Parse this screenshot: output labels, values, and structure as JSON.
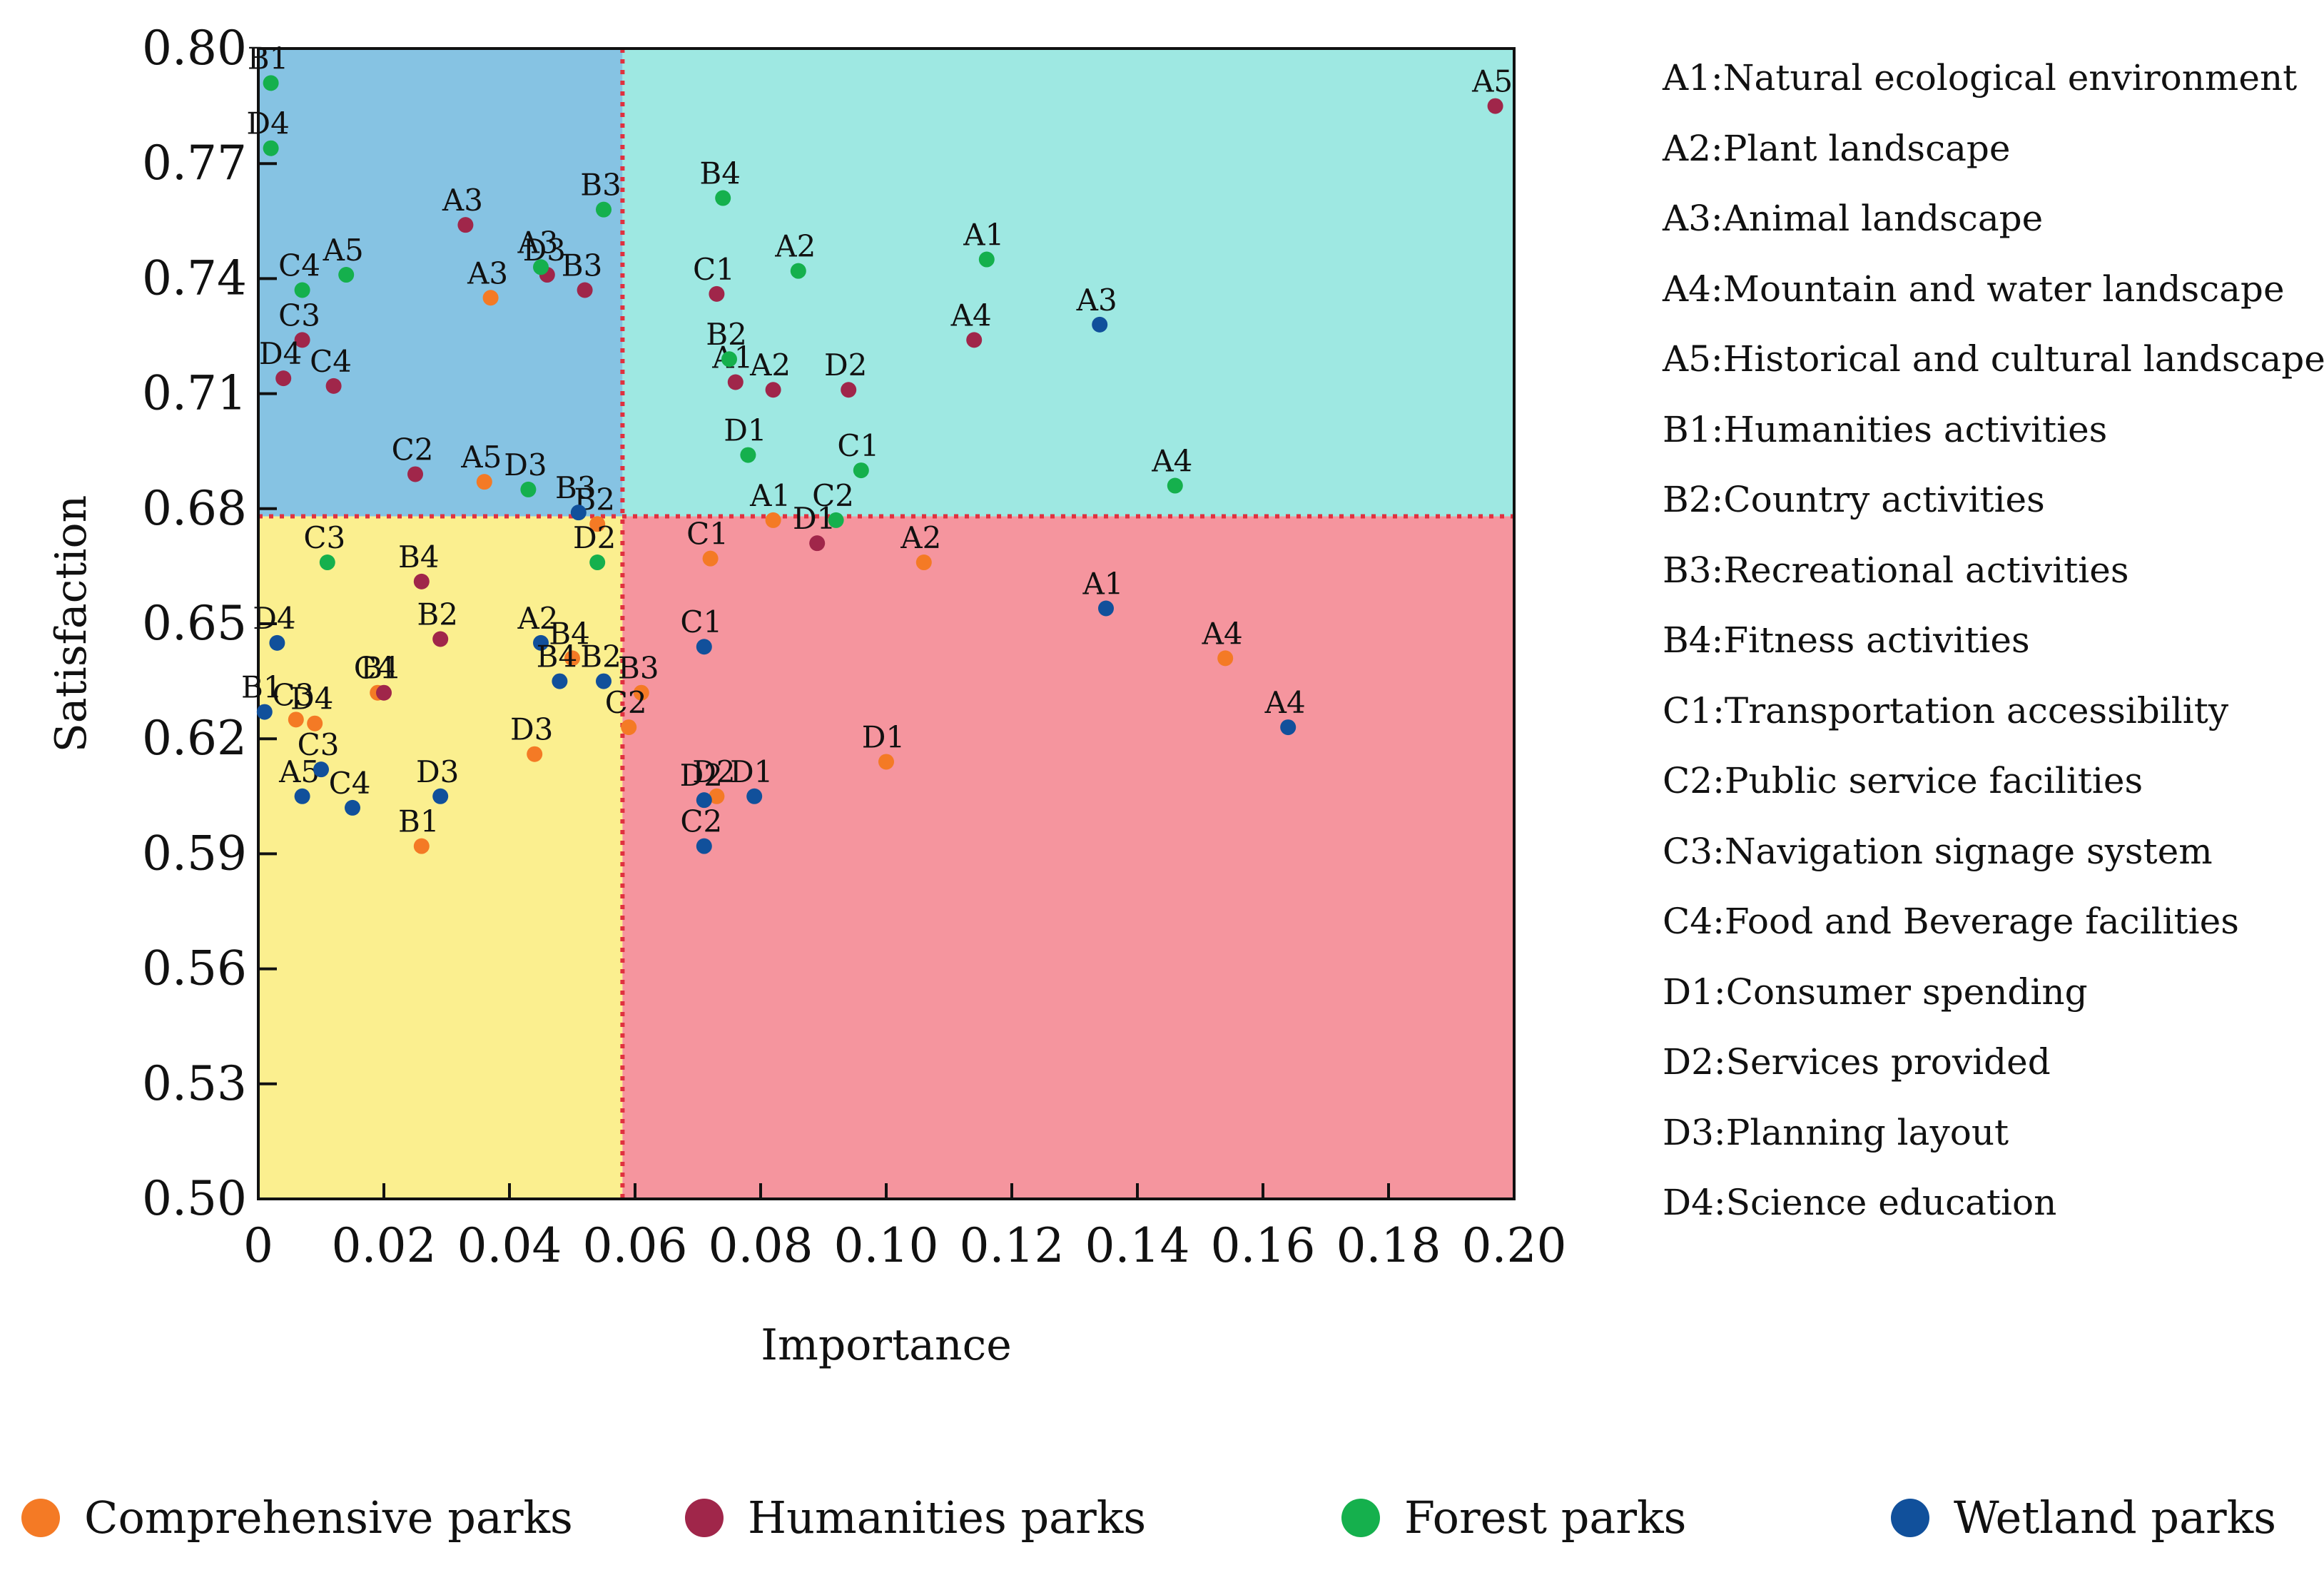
{
  "chart_data": {
    "type": "scatter",
    "xlabel": "Importance",
    "ylabel": "Satisfaction",
    "xlim": [
      0,
      0.2
    ],
    "ylim": [
      0.5,
      0.8
    ],
    "xticks": [
      "0",
      "0.02",
      "0.04",
      "0.06",
      "0.08",
      "0.10",
      "0.12",
      "0.14",
      "0.16",
      "0.18",
      "0.20"
    ],
    "yticks": [
      "0.80",
      "0.77",
      "0.74",
      "0.71",
      "0.68",
      "0.65",
      "0.62",
      "0.59",
      "0.56",
      "0.53",
      "0.50"
    ],
    "threshold_x": 0.058,
    "threshold_y": 0.678,
    "quadrant_colors": {
      "top_left": "#86c3e3",
      "top_right": "#9ee8e2",
      "bottom_left": "#fbef8f",
      "bottom_right": "#f5959e",
      "threshold_line": "#e0313f"
    },
    "series": [
      {
        "name": "Comprehensive parks",
        "color": "#f47a25",
        "points": [
          {
            "label": "A1",
            "x": 0.082,
            "y": 0.677
          },
          {
            "label": "A2",
            "x": 0.106,
            "y": 0.666
          },
          {
            "label": "A3",
            "x": 0.037,
            "y": 0.735
          },
          {
            "label": "A4",
            "x": 0.154,
            "y": 0.641
          },
          {
            "label": "A5",
            "x": 0.036,
            "y": 0.687
          },
          {
            "label": "B1",
            "x": 0.026,
            "y": 0.592
          },
          {
            "label": "B2",
            "x": 0.054,
            "y": 0.676
          },
          {
            "label": "B3",
            "x": 0.061,
            "y": 0.632
          },
          {
            "label": "B4",
            "x": 0.05,
            "y": 0.641
          },
          {
            "label": "C1",
            "x": 0.072,
            "y": 0.667
          },
          {
            "label": "C2",
            "x": 0.059,
            "y": 0.623
          },
          {
            "label": "C3",
            "x": 0.006,
            "y": 0.625
          },
          {
            "label": "C4",
            "x": 0.019,
            "y": 0.632
          },
          {
            "label": "D1",
            "x": 0.1,
            "y": 0.614
          },
          {
            "label": "D2",
            "x": 0.073,
            "y": 0.605
          },
          {
            "label": "D3",
            "x": 0.044,
            "y": 0.616
          },
          {
            "label": "D4",
            "x": 0.009,
            "y": 0.624
          }
        ]
      },
      {
        "name": "Humanities parks",
        "color": "#a0264a",
        "points": [
          {
            "label": "A1",
            "x": 0.076,
            "y": 0.713
          },
          {
            "label": "A2",
            "x": 0.082,
            "y": 0.711
          },
          {
            "label": "A3",
            "x": 0.033,
            "y": 0.754
          },
          {
            "label": "A4",
            "x": 0.114,
            "y": 0.724
          },
          {
            "label": "A5",
            "x": 0.197,
            "y": 0.785
          },
          {
            "label": "B1",
            "x": 0.02,
            "y": 0.632
          },
          {
            "label": "B2",
            "x": 0.029,
            "y": 0.646
          },
          {
            "label": "B3",
            "x": 0.052,
            "y": 0.737
          },
          {
            "label": "B4",
            "x": 0.026,
            "y": 0.661
          },
          {
            "label": "C1",
            "x": 0.073,
            "y": 0.736
          },
          {
            "label": "C2",
            "x": 0.025,
            "y": 0.689
          },
          {
            "label": "C3",
            "x": 0.007,
            "y": 0.724
          },
          {
            "label": "C4",
            "x": 0.012,
            "y": 0.712
          },
          {
            "label": "D1",
            "x": 0.089,
            "y": 0.671
          },
          {
            "label": "D2",
            "x": 0.094,
            "y": 0.711
          },
          {
            "label": "D3",
            "x": 0.046,
            "y": 0.741
          },
          {
            "label": "D4",
            "x": 0.004,
            "y": 0.714
          }
        ]
      },
      {
        "name": "Forest parks",
        "color": "#15b04d",
        "points": [
          {
            "label": "A1",
            "x": 0.116,
            "y": 0.745
          },
          {
            "label": "A2",
            "x": 0.086,
            "y": 0.742
          },
          {
            "label": "A3",
            "x": 0.045,
            "y": 0.743
          },
          {
            "label": "A4",
            "x": 0.146,
            "y": 0.686
          },
          {
            "label": "A5",
            "x": 0.014,
            "y": 0.741
          },
          {
            "label": "B1",
            "x": 0.002,
            "y": 0.791
          },
          {
            "label": "B2",
            "x": 0.075,
            "y": 0.719
          },
          {
            "label": "B3",
            "x": 0.055,
            "y": 0.758
          },
          {
            "label": "B4",
            "x": 0.074,
            "y": 0.761
          },
          {
            "label": "C1",
            "x": 0.096,
            "y": 0.69
          },
          {
            "label": "C2",
            "x": 0.092,
            "y": 0.677
          },
          {
            "label": "C3",
            "x": 0.011,
            "y": 0.666
          },
          {
            "label": "C4",
            "x": 0.007,
            "y": 0.737
          },
          {
            "label": "D1",
            "x": 0.078,
            "y": 0.694
          },
          {
            "label": "D2",
            "x": 0.054,
            "y": 0.666
          },
          {
            "label": "D3",
            "x": 0.043,
            "y": 0.685
          },
          {
            "label": "D4",
            "x": 0.002,
            "y": 0.774
          }
        ]
      },
      {
        "name": "Wetland parks",
        "color": "#11509b",
        "points": [
          {
            "label": "A1",
            "x": 0.135,
            "y": 0.654
          },
          {
            "label": "A2",
            "x": 0.045,
            "y": 0.645
          },
          {
            "label": "A3",
            "x": 0.134,
            "y": 0.728
          },
          {
            "label": "A4",
            "x": 0.164,
            "y": 0.623
          },
          {
            "label": "A5",
            "x": 0.007,
            "y": 0.605
          },
          {
            "label": "B1",
            "x": 0.001,
            "y": 0.627
          },
          {
            "label": "B2",
            "x": 0.055,
            "y": 0.635
          },
          {
            "label": "B3",
            "x": 0.051,
            "y": 0.679
          },
          {
            "label": "B4",
            "x": 0.048,
            "y": 0.635
          },
          {
            "label": "C1",
            "x": 0.071,
            "y": 0.644
          },
          {
            "label": "C2",
            "x": 0.071,
            "y": 0.592
          },
          {
            "label": "C3",
            "x": 0.01,
            "y": 0.612
          },
          {
            "label": "C4",
            "x": 0.015,
            "y": 0.602
          },
          {
            "label": "D1",
            "x": 0.079,
            "y": 0.605
          },
          {
            "label": "D2",
            "x": 0.071,
            "y": 0.604
          },
          {
            "label": "D3",
            "x": 0.029,
            "y": 0.605
          },
          {
            "label": "D4",
            "x": 0.003,
            "y": 0.645
          }
        ]
      }
    ],
    "definitions": [
      "A1:Natural ecological environment",
      "A2:Plant landscape",
      "A3:Animal landscape",
      "A4:Mountain and water landscape",
      "A5:Historical and cultural landscape",
      "B1:Humanities activities",
      "B2:Country activities",
      "B3:Recreational activities",
      "B4:Fitness activities",
      "C1:Transportation accessibility",
      "C2:Public service facilities",
      "C3:Navigation signage system",
      "C4:Food and Beverage facilities",
      "D1:Consumer  spending",
      "D2:Services provided",
      "D3:Planning layout",
      "D4:Science education"
    ],
    "legend": [
      {
        "label": "Comprehensive parks",
        "color": "#f47a25"
      },
      {
        "label": "Humanities parks",
        "color": "#a0264a"
      },
      {
        "label": "Forest parks",
        "color": "#15b04d"
      },
      {
        "label": "Wetland parks",
        "color": "#11509b"
      }
    ]
  }
}
